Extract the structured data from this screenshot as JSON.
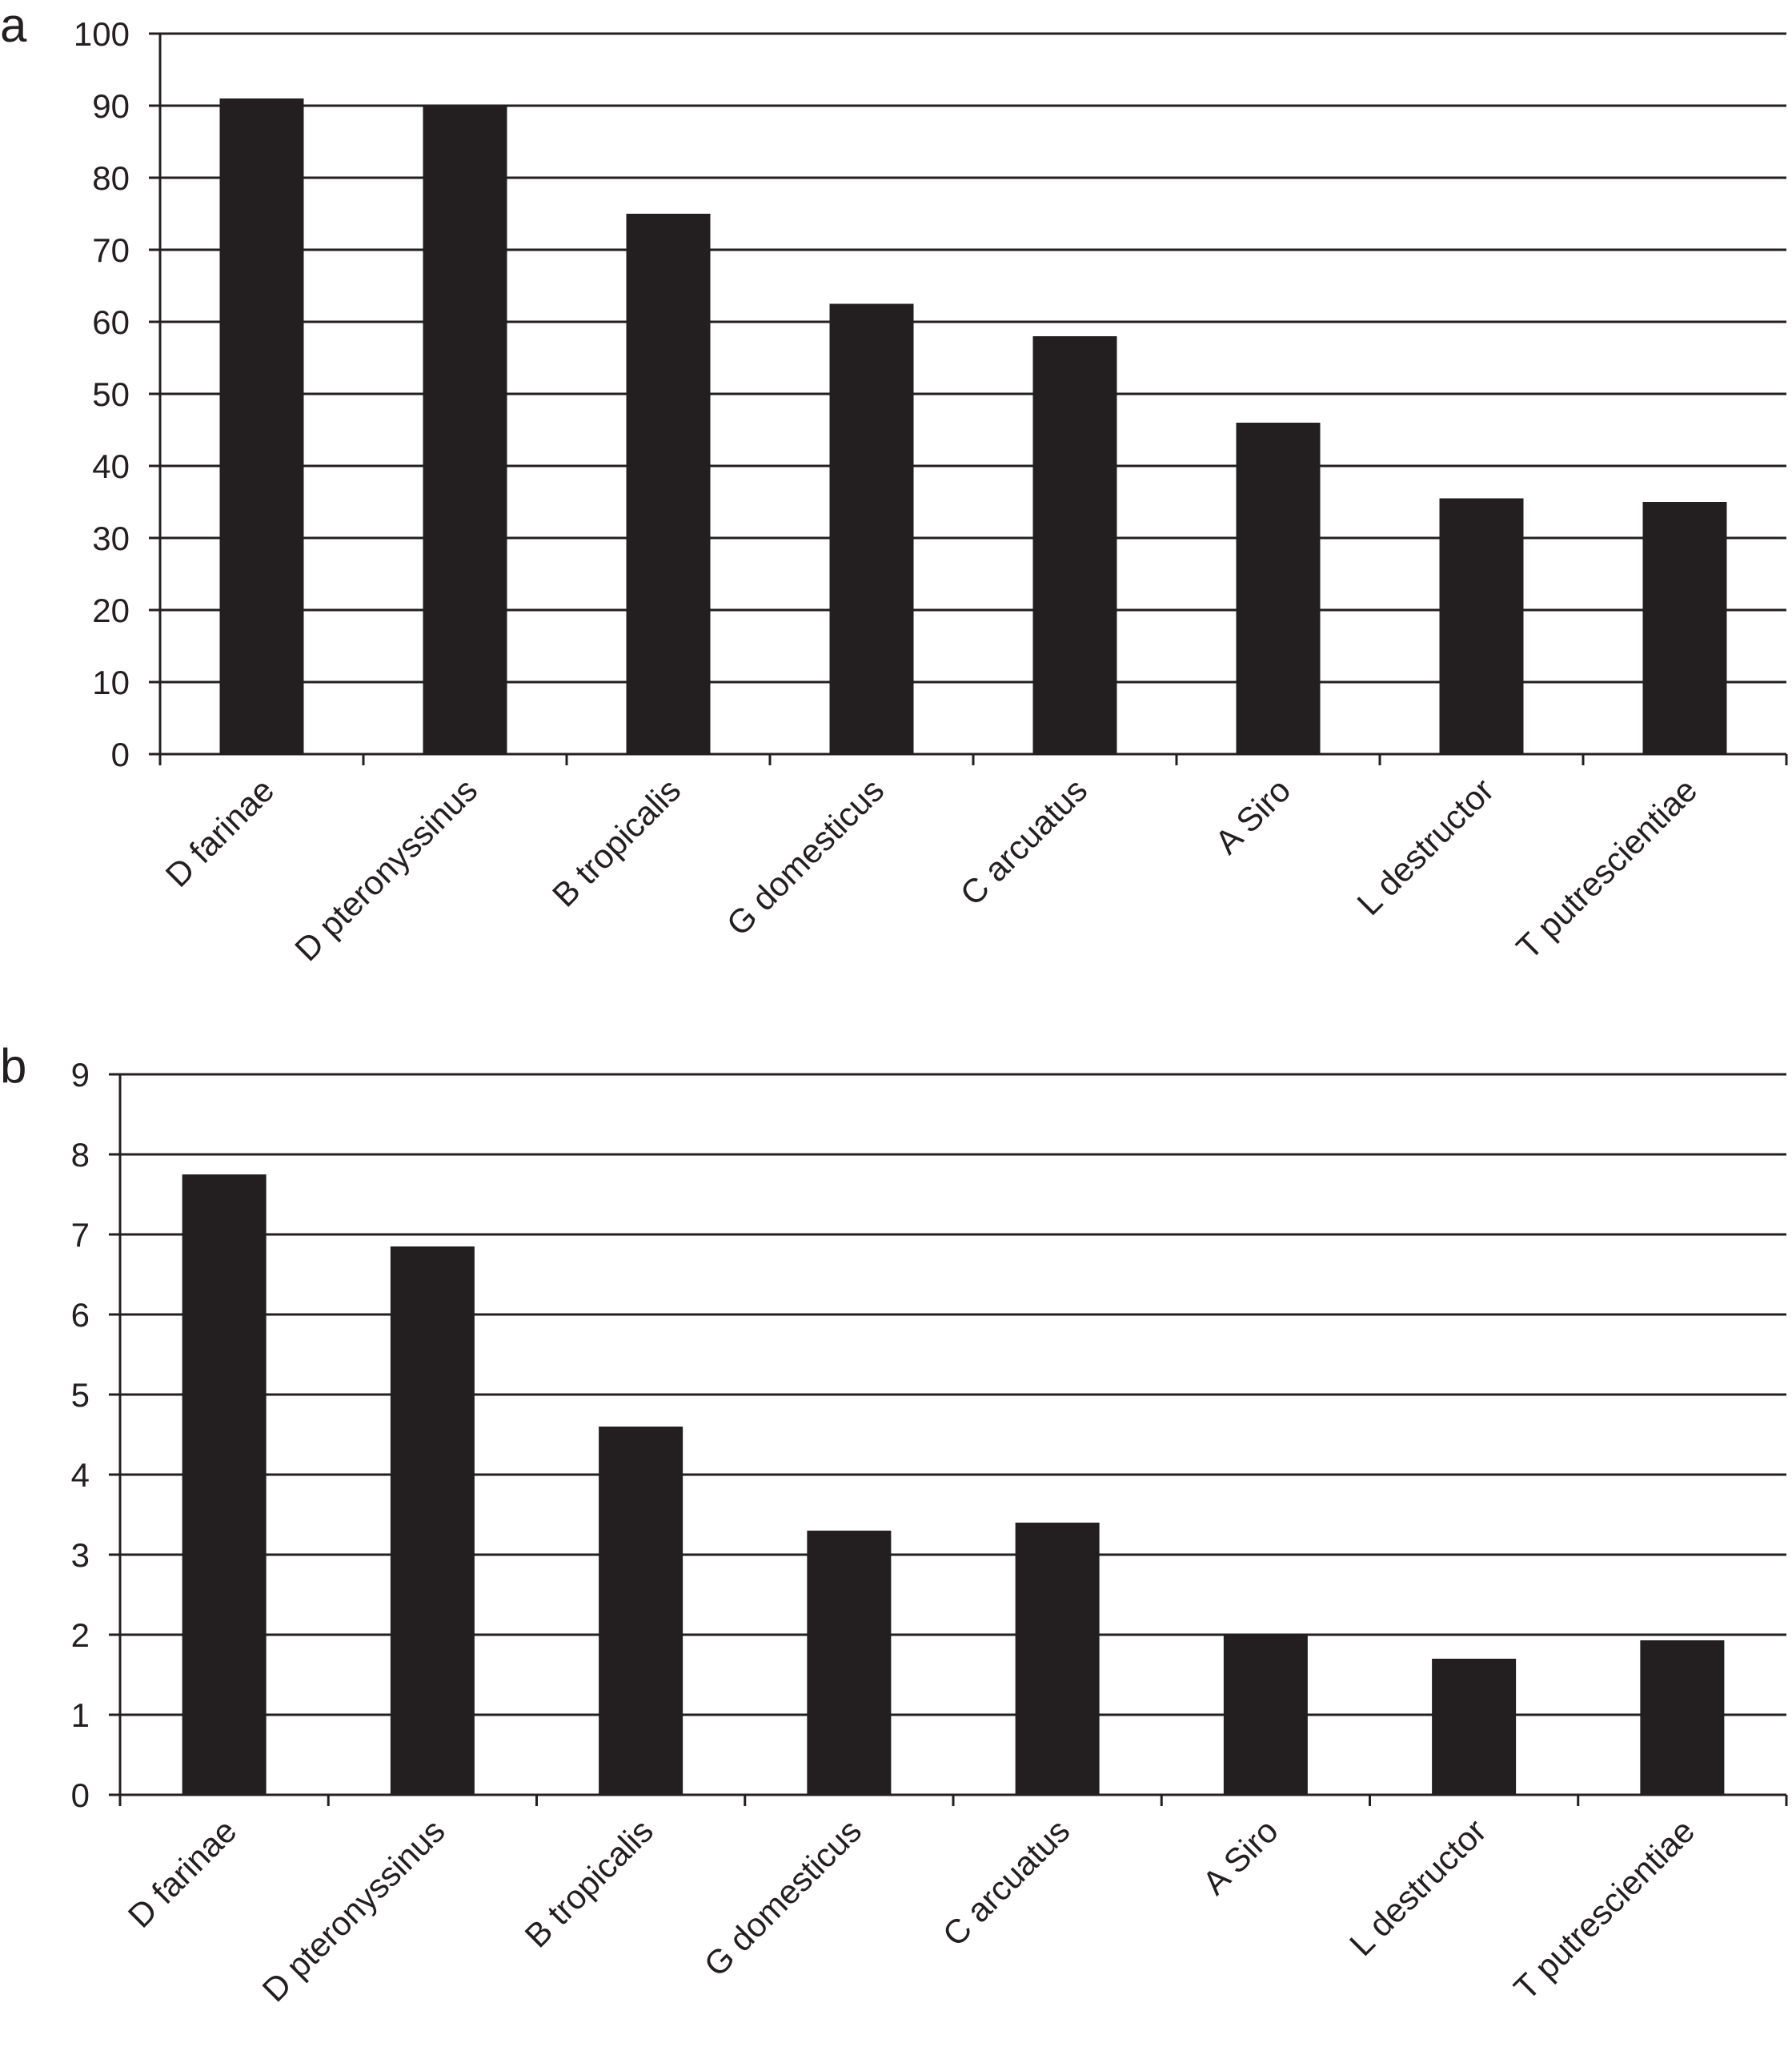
{
  "chart_data": [
    {
      "panel": "a",
      "type": "bar",
      "categories": [
        "D farinae",
        "D pteronyssinus",
        "B tropicalis",
        "G domesticus",
        "C arcuatus",
        "A Siro",
        "L destructor",
        "T putrescientiae"
      ],
      "values": [
        91,
        90,
        75,
        62.5,
        58,
        46,
        35.5,
        35
      ],
      "yticks": [
        "0",
        "10",
        "20",
        "30",
        "40",
        "50",
        "60",
        "70",
        "80",
        "90",
        "100"
      ],
      "ylim": [
        0,
        100
      ],
      "grid": true,
      "bar_color": "#231f20",
      "title": "",
      "xlabel": "",
      "ylabel": ""
    },
    {
      "panel": "b",
      "type": "bar",
      "categories": [
        "D farinae",
        "D pteronyssinus",
        "B tropicalis",
        "G domesticus",
        "C arcuatus",
        "A Siro",
        "L destructor",
        "T putrescientiae"
      ],
      "values": [
        7.75,
        6.85,
        4.6,
        3.3,
        3.4,
        2.0,
        1.7,
        1.93
      ],
      "yticks": [
        "0",
        "1",
        "2",
        "3",
        "4",
        "5",
        "6",
        "7",
        "8",
        "9"
      ],
      "ylim": [
        0,
        9
      ],
      "grid": true,
      "bar_color": "#231f20",
      "title": "",
      "xlabel": "",
      "ylabel": ""
    }
  ]
}
